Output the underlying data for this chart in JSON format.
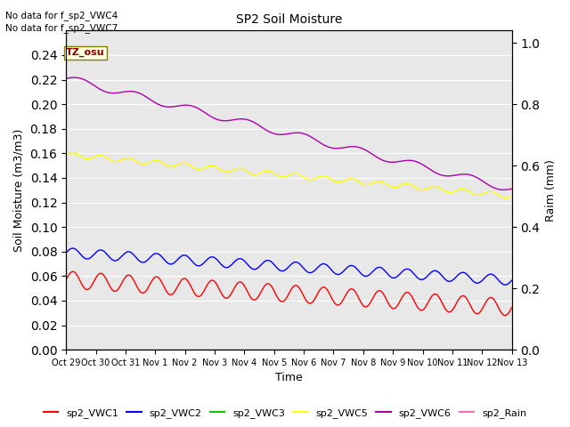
{
  "title": "SP2 Soil Moisture",
  "xlabel": "Time",
  "ylabel_left": "Soil Moisture (m3/m3)",
  "ylabel_right": "Raim (mm)",
  "no_data_text": [
    "No data for f_sp2_VWC4",
    "No data for f_sp2_VWC7"
  ],
  "tz_label": "TZ_osu",
  "ylim_left": [
    0.0,
    0.26
  ],
  "ylim_right": [
    0.0,
    1.04
  ],
  "yticks_left": [
    0.0,
    0.02,
    0.04,
    0.06,
    0.08,
    0.1,
    0.12,
    0.14,
    0.16,
    0.18,
    0.2,
    0.22,
    0.24
  ],
  "yticks_right": [
    0.0,
    0.2,
    0.4,
    0.6,
    0.8,
    1.0
  ],
  "bg_color": "#e8e8e8",
  "series": {
    "sp2_VWC1": {
      "color": "#ff0000",
      "base": 0.057,
      "amplitude": 0.007,
      "cycles": 16,
      "trend": -0.0001
    },
    "sp2_VWC2": {
      "color": "#0000ff",
      "base": 0.079,
      "amplitude": 0.004,
      "cycles": 16,
      "trend": -0.0001
    },
    "sp2_VWC3": {
      "color": "#00cc00",
      "base": 0.0,
      "amplitude": 0.0,
      "cycles": 0,
      "trend": 0.0
    },
    "sp2_VWC5": {
      "color": "#ffff00",
      "base": 0.159,
      "amplitude": 0.002,
      "cycles": 16,
      "trend": -0.00015
    },
    "sp2_VWC6": {
      "color": "#aa00aa",
      "base": 0.221,
      "amplitude": 0.003,
      "cycles": 8,
      "trend": -0.0004
    },
    "sp2_Rain": {
      "color": "#ff69b4",
      "base": 0.0,
      "amplitude": 0.0,
      "cycles": 0,
      "trend": 0.0
    }
  },
  "legend": [
    {
      "label": "sp2_VWC1",
      "color": "#ff0000"
    },
    {
      "label": "sp2_VWC2",
      "color": "#0000ff"
    },
    {
      "label": "sp2_VWC3",
      "color": "#00cc00"
    },
    {
      "label": "sp2_VWC5",
      "color": "#ffff00"
    },
    {
      "label": "sp2_VWC6",
      "color": "#aa00aa"
    },
    {
      "label": "sp2_Rain",
      "color": "#ff69b4"
    }
  ],
  "xtick_labels": [
    "Oct 29",
    "Oct 30",
    "Oct 31",
    "Nov 1",
    "Nov 2",
    "Nov 3",
    "Nov 4",
    "Nov 5",
    "Nov 6",
    "Nov 7",
    "Nov 8",
    "Nov 9",
    "Nov 10",
    "Nov 11",
    "Nov 12",
    "Nov 13"
  ],
  "n_points": 1000,
  "linewidth": 1.0
}
